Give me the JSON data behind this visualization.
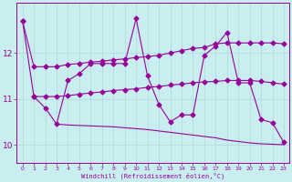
{
  "background_color": "#c8eef0",
  "grid_color": "#b0d8da",
  "line_color": "#990099",
  "xlabel": "Windchill (Refroidissement éolien,°C)",
  "xlim": [
    -0.5,
    23.5
  ],
  "ylim": [
    9.6,
    13.1
  ],
  "yticks": [
    10,
    11,
    12
  ],
  "xticks": [
    0,
    1,
    2,
    3,
    4,
    5,
    6,
    7,
    8,
    9,
    10,
    11,
    12,
    13,
    14,
    15,
    16,
    17,
    18,
    19,
    20,
    21,
    22,
    23
  ],
  "line1_x": [
    0,
    1,
    2,
    3,
    4,
    5,
    6,
    7,
    8,
    9,
    10,
    11,
    12,
    13,
    14,
    15,
    16,
    17,
    18,
    19,
    20,
    21,
    22,
    23
  ],
  "line1_y": [
    12.7,
    11.7,
    11.7,
    11.7,
    11.75,
    11.77,
    11.8,
    11.82,
    11.85,
    11.87,
    11.9,
    11.92,
    11.95,
    12.0,
    12.05,
    12.1,
    12.12,
    12.2,
    12.22,
    12.22,
    12.22,
    12.22,
    12.22,
    12.2
  ],
  "line2_x": [
    1,
    2,
    3,
    4,
    5,
    6,
    7,
    8,
    9,
    10,
    11,
    12,
    13,
    14,
    15,
    16,
    17,
    18,
    19,
    20,
    21,
    22,
    23
  ],
  "line2_y": [
    11.05,
    11.05,
    11.05,
    11.07,
    11.1,
    11.13,
    11.15,
    11.18,
    11.2,
    11.22,
    11.25,
    11.27,
    11.3,
    11.32,
    11.35,
    11.37,
    11.38,
    11.4,
    11.4,
    11.4,
    11.38,
    11.35,
    11.32
  ],
  "line3_x": [
    3,
    4,
    5,
    6,
    7,
    8,
    9,
    10,
    11,
    12,
    13,
    14,
    15,
    16,
    17,
    18,
    19,
    20,
    21,
    22,
    23
  ],
  "line3_y": [
    10.45,
    10.43,
    10.42,
    10.41,
    10.4,
    10.39,
    10.37,
    10.35,
    10.33,
    10.3,
    10.27,
    10.24,
    10.21,
    10.18,
    10.15,
    10.1,
    10.07,
    10.04,
    10.02,
    10.01,
    10.0
  ],
  "line4_x": [
    0,
    1,
    2,
    3,
    4,
    5,
    6,
    7,
    8,
    9,
    10,
    11,
    12,
    13,
    14,
    15,
    16,
    17,
    18,
    19,
    20,
    21,
    22,
    23
  ],
  "line4_y": [
    12.7,
    11.05,
    10.8,
    10.45,
    11.4,
    11.55,
    11.77,
    11.77,
    11.77,
    11.77,
    12.75,
    11.5,
    10.88,
    10.5,
    10.65,
    10.65,
    11.95,
    12.15,
    12.45,
    11.35,
    11.35,
    10.55,
    10.48,
    10.05
  ],
  "line4_markers_x": [
    0,
    1,
    2,
    3,
    4,
    5,
    6,
    7,
    10,
    11,
    12,
    13,
    14,
    15,
    16,
    17,
    18,
    19,
    20,
    21,
    22,
    23
  ],
  "line4_markers_y": [
    12.7,
    11.05,
    10.8,
    10.45,
    11.4,
    11.55,
    11.77,
    11.77,
    12.75,
    11.5,
    10.88,
    10.5,
    10.65,
    10.65,
    11.95,
    12.15,
    12.45,
    11.35,
    11.35,
    10.55,
    10.48,
    10.05
  ]
}
